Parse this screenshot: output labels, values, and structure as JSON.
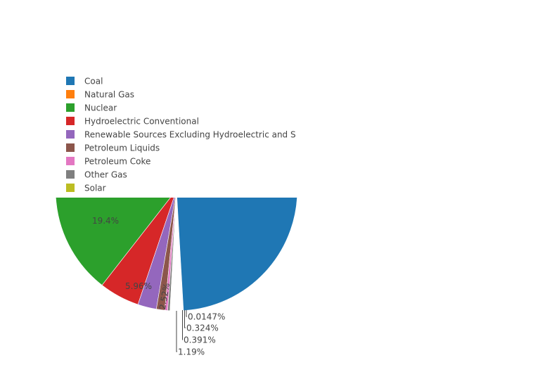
{
  "chart_data": {
    "type": "pie",
    "title": "",
    "legend_position": "top-left",
    "categories": [
      "Coal",
      "Natural Gas",
      "Nuclear",
      "Hydroelectric Conventional",
      "Renewable Sources Excluding Hydroelectric and S",
      "Petroleum Liquids",
      "Petroleum Coke",
      "Other Gas",
      "Solar"
    ],
    "values": [
      null,
      null,
      19.4,
      5.96,
      2.52,
      1.19,
      0.391,
      0.324,
      0.0147
    ],
    "labels": [
      "",
      "",
      "19.4%",
      "5.96%",
      "2.52%",
      "1.19%",
      "0.391%",
      "0.324%",
      "0.0147%"
    ],
    "colors": [
      "#1f77b4",
      "#ff7f0e",
      "#2ca02c",
      "#d62728",
      "#9467bd",
      "#8c564b",
      "#e377c2",
      "#7f7f7f",
      "#bcbd22"
    ]
  }
}
